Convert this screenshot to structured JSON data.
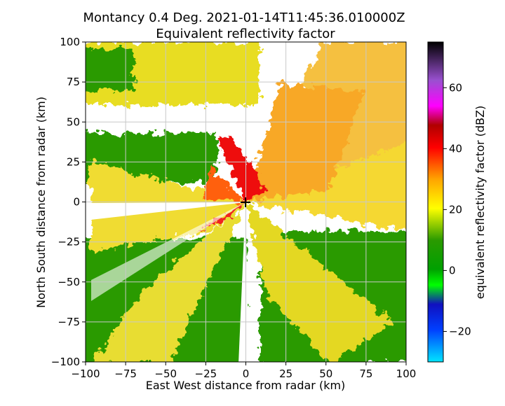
{
  "chart_data": {
    "type": "radar-ppi",
    "title": "Montancy 0.4 Deg. 2021-01-14T11:45:36.010000Z",
    "subtitle": "Equivalent reflectivity factor",
    "x_label": "East West distance from radar (km)",
    "y_label": "North South distance from radar (km)",
    "colorbar_label": "equivalent reflectivity factor (dBZ)",
    "xlim": [
      -100,
      100
    ],
    "ylim": [
      -100,
      100
    ],
    "xticks": [
      {
        "value": -100,
        "label": "−100"
      },
      {
        "value": -75,
        "label": "−75"
      },
      {
        "value": -50,
        "label": "−50"
      },
      {
        "value": -25,
        "label": "−25"
      },
      0,
      25,
      50,
      75,
      100
    ],
    "yticks": [
      {
        "value": -100,
        "label": "−100"
      },
      {
        "value": -75,
        "label": "−75"
      },
      {
        "value": -50,
        "label": "−50"
      },
      {
        "value": -25,
        "label": "−25"
      },
      0,
      25,
      50,
      75,
      100
    ],
    "clim": [
      -30,
      75
    ],
    "cticks": [
      {
        "value": -20,
        "label": "−20"
      },
      0,
      20,
      40,
      60
    ],
    "grid": true
  }
}
